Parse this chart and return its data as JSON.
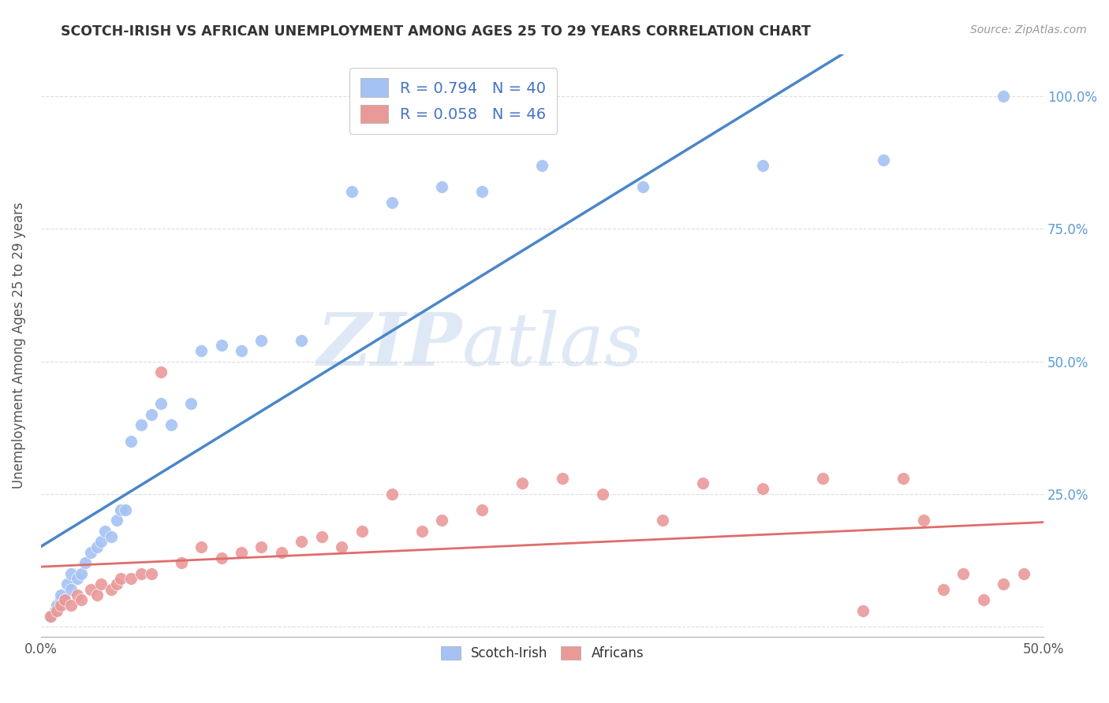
{
  "title": "SCOTCH-IRISH VS AFRICAN UNEMPLOYMENT AMONG AGES 25 TO 29 YEARS CORRELATION CHART",
  "source": "Source: ZipAtlas.com",
  "ylabel": "Unemployment Among Ages 25 to 29 years",
  "xlim": [
    0.0,
    0.5
  ],
  "ylim": [
    -0.02,
    1.08
  ],
  "xticks": [
    0.0,
    0.1,
    0.2,
    0.3,
    0.4,
    0.5
  ],
  "yticks": [
    0.0,
    0.25,
    0.5,
    0.75,
    1.0
  ],
  "xticklabels": [
    "0.0%",
    "",
    "",
    "",
    "",
    "50.0%"
  ],
  "yticklabels_right": [
    "",
    "25.0%",
    "50.0%",
    "75.0%",
    "100.0%"
  ],
  "scotch_irish_color": "#a4c2f4",
  "african_color": "#ea9999",
  "scotch_irish_line_color": "#4a86c8",
  "african_line_color": "#e06c6c",
  "R_scotch": 0.794,
  "N_scotch": 40,
  "R_african": 0.058,
  "N_african": 46,
  "watermark_zip": "ZIP",
  "watermark_atlas": "atlas",
  "scotch_irish_x": [
    0.005,
    0.007,
    0.008,
    0.01,
    0.01,
    0.012,
    0.013,
    0.015,
    0.015,
    0.018,
    0.02,
    0.022,
    0.025,
    0.028,
    0.03,
    0.032,
    0.035,
    0.038,
    0.04,
    0.042,
    0.045,
    0.05,
    0.055,
    0.06,
    0.065,
    0.075,
    0.08,
    0.09,
    0.1,
    0.11,
    0.13,
    0.155,
    0.175,
    0.2,
    0.22,
    0.25,
    0.3,
    0.36,
    0.42,
    0.48
  ],
  "scotch_irish_y": [
    0.02,
    0.03,
    0.04,
    0.05,
    0.06,
    0.05,
    0.08,
    0.07,
    0.1,
    0.09,
    0.1,
    0.12,
    0.14,
    0.15,
    0.16,
    0.18,
    0.17,
    0.2,
    0.22,
    0.22,
    0.35,
    0.38,
    0.4,
    0.42,
    0.38,
    0.42,
    0.52,
    0.53,
    0.52,
    0.54,
    0.54,
    0.82,
    0.8,
    0.83,
    0.82,
    0.87,
    0.83,
    0.87,
    0.88,
    1.0
  ],
  "african_x": [
    0.005,
    0.008,
    0.01,
    0.012,
    0.015,
    0.018,
    0.02,
    0.025,
    0.028,
    0.03,
    0.035,
    0.038,
    0.04,
    0.045,
    0.05,
    0.055,
    0.06,
    0.07,
    0.08,
    0.09,
    0.1,
    0.11,
    0.12,
    0.13,
    0.14,
    0.15,
    0.16,
    0.175,
    0.19,
    0.2,
    0.22,
    0.24,
    0.26,
    0.28,
    0.31,
    0.33,
    0.36,
    0.39,
    0.41,
    0.43,
    0.44,
    0.45,
    0.46,
    0.47,
    0.48,
    0.49
  ],
  "african_y": [
    0.02,
    0.03,
    0.04,
    0.05,
    0.04,
    0.06,
    0.05,
    0.07,
    0.06,
    0.08,
    0.07,
    0.08,
    0.09,
    0.09,
    0.1,
    0.1,
    0.48,
    0.12,
    0.15,
    0.13,
    0.14,
    0.15,
    0.14,
    0.16,
    0.17,
    0.15,
    0.18,
    0.25,
    0.18,
    0.2,
    0.22,
    0.27,
    0.28,
    0.25,
    0.2,
    0.27,
    0.26,
    0.28,
    0.03,
    0.28,
    0.2,
    0.07,
    0.1,
    0.05,
    0.08,
    0.1
  ]
}
